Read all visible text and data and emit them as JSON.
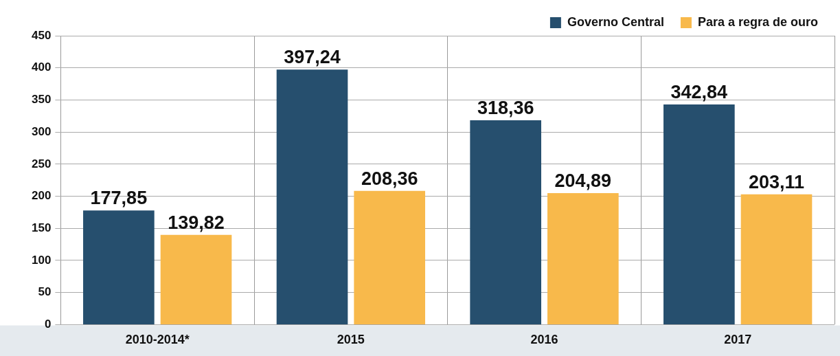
{
  "chart_data": {
    "type": "bar",
    "categories": [
      "2010-2014*",
      "2015",
      "2016",
      "2017"
    ],
    "series": [
      {
        "name": "Governo Central",
        "color": "#264f6e",
        "values": [
          177.85,
          397.24,
          318.36,
          342.84
        ],
        "value_labels": [
          "177,85",
          "397,24",
          "318,36",
          "342,84"
        ]
      },
      {
        "name": "Para a regra de ouro",
        "color": "#f8b94b",
        "values": [
          139.82,
          208.36,
          204.89,
          203.11
        ],
        "value_labels": [
          "139,82",
          "208,36",
          "204,89",
          "203,11"
        ]
      }
    ],
    "ylim": [
      0,
      450
    ],
    "yticks": [
      0,
      50,
      100,
      150,
      200,
      250,
      300,
      350,
      400,
      450
    ],
    "grid": true,
    "legend": "top right"
  }
}
